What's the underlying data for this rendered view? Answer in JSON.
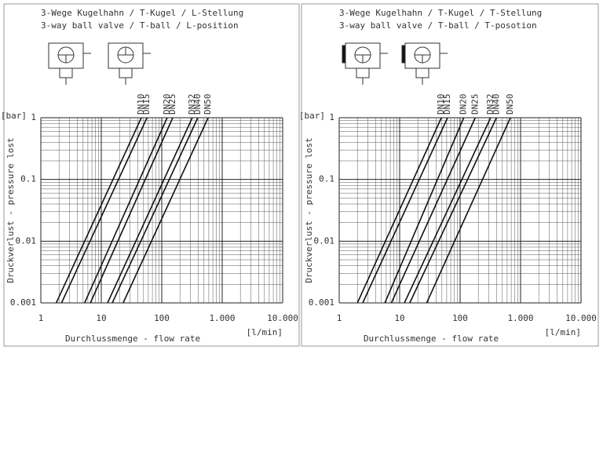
{
  "chart_data": [
    {
      "type": "line",
      "title_lines": [
        "3-Wege Kugelhahn / T-Kugel / L-Stellung",
        "3-way ball valve / T-ball / L-position"
      ],
      "x_label": "Durchlussmenge - flow rate",
      "x_unit": "[l/min]",
      "y_label": "Druckverlust - pressure lost",
      "y_unit": "[bar]",
      "log_x": true,
      "log_y": true,
      "grid": true,
      "color": "#111111",
      "xlim": [
        1,
        10000
      ],
      "ylim": [
        0.001,
        1
      ],
      "xticks": [
        1,
        10,
        100,
        {
          "value": 1000,
          "label": "1.000"
        },
        {
          "value": 10000,
          "label": "10.000"
        }
      ],
      "yticks": [
        0.001,
        0.01,
        0.1,
        1
      ],
      "series": [
        {
          "name": "DN10",
          "x": [
            1.8,
            46
          ],
          "values": [
            0.001,
            1
          ]
        },
        {
          "name": "DN15",
          "x": [
            2.2,
            57
          ],
          "values": [
            0.001,
            1
          ]
        },
        {
          "name": "DN20",
          "x": [
            5.3,
            123
          ],
          "values": [
            0.001,
            1
          ]
        },
        {
          "name": "DN25",
          "x": [
            6.6,
            152
          ],
          "values": [
            0.001,
            1
          ]
        },
        {
          "name": "DN32",
          "x": [
            12.7,
            320
          ],
          "values": [
            0.001,
            1
          ]
        },
        {
          "name": "DN40",
          "x": [
            15.2,
            395
          ],
          "values": [
            0.001,
            1
          ]
        },
        {
          "name": "DN50",
          "x": [
            23,
            585
          ],
          "values": [
            0.001,
            1
          ]
        }
      ]
    },
    {
      "type": "line",
      "title_lines": [
        "3-Wege Kugelhahn / T-Kugel / T-Stellung",
        "3-way ball valve / T-ball / T-posotion"
      ],
      "x_label": "Durchlussmenge - flow rate",
      "x_unit": "[l/min]",
      "y_label": "Druckverlust - pressure lost",
      "y_unit": "[bar]",
      "log_x": true,
      "log_y": true,
      "grid": true,
      "color": "#111111",
      "xlim": [
        1,
        10000
      ],
      "ylim": [
        0.001,
        1
      ],
      "xticks": [
        1,
        10,
        100,
        {
          "value": 1000,
          "label": "1.000"
        },
        {
          "value": 10000,
          "label": "10.000"
        }
      ],
      "yticks": [
        0.001,
        0.01,
        0.1,
        1
      ],
      "series": [
        {
          "name": "DN10",
          "x": [
            2,
            49
          ],
          "values": [
            0.001,
            1
          ]
        },
        {
          "name": "DN15",
          "x": [
            2.45,
            62
          ],
          "values": [
            0.001,
            1
          ]
        },
        {
          "name": "DN20",
          "x": [
            5.7,
            115
          ],
          "values": [
            0.001,
            1
          ]
        },
        {
          "name": "DN25",
          "x": [
            7.3,
            178
          ],
          "values": [
            0.001,
            1
          ]
        },
        {
          "name": "DN32",
          "x": [
            12,
            320
          ],
          "values": [
            0.001,
            1
          ]
        },
        {
          "name": "DN40",
          "x": [
            14.7,
            400
          ],
          "values": [
            0.001,
            1
          ]
        },
        {
          "name": "DN50",
          "x": [
            28,
            680
          ],
          "values": [
            0.001,
            1
          ]
        }
      ]
    }
  ]
}
